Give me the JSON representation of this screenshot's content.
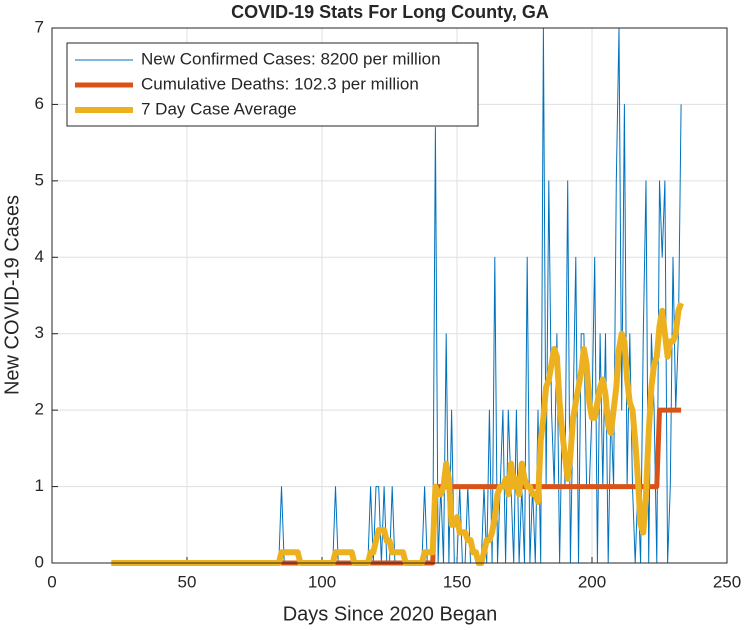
{
  "chart_data": {
    "type": "line",
    "title": "COVID-19 Stats For Long County, GA",
    "x_label": "Days Since 2020 Began",
    "y_label": "New COVID-19 Cases",
    "xlim": [
      0,
      250
    ],
    "ylim": [
      0,
      7
    ],
    "xticks": [
      0,
      50,
      100,
      150,
      200,
      250
    ],
    "yticks": [
      0,
      1,
      2,
      3,
      4,
      5,
      6,
      7
    ],
    "grid": true,
    "legend_position": "northwest",
    "x": [
      22,
      23,
      24,
      25,
      26,
      27,
      28,
      29,
      30,
      31,
      32,
      33,
      34,
      35,
      36,
      37,
      38,
      39,
      40,
      41,
      42,
      43,
      44,
      45,
      46,
      47,
      48,
      49,
      50,
      51,
      52,
      53,
      54,
      55,
      56,
      57,
      58,
      59,
      60,
      61,
      62,
      63,
      64,
      65,
      66,
      67,
      68,
      69,
      70,
      71,
      72,
      73,
      74,
      75,
      76,
      77,
      78,
      79,
      80,
      81,
      82,
      83,
      84,
      85,
      86,
      87,
      88,
      89,
      90,
      91,
      92,
      93,
      94,
      95,
      96,
      97,
      98,
      99,
      100,
      101,
      102,
      103,
      104,
      105,
      106,
      107,
      108,
      109,
      110,
      111,
      112,
      113,
      114,
      115,
      116,
      117,
      118,
      119,
      120,
      121,
      122,
      123,
      124,
      125,
      126,
      127,
      128,
      129,
      130,
      131,
      132,
      133,
      134,
      135,
      136,
      137,
      138,
      139,
      140,
      141,
      142,
      143,
      144,
      145,
      146,
      147,
      148,
      149,
      150,
      151,
      152,
      153,
      154,
      155,
      156,
      157,
      158,
      159,
      160,
      161,
      162,
      163,
      164,
      165,
      166,
      167,
      168,
      169,
      170,
      171,
      172,
      173,
      174,
      175,
      176,
      177,
      178,
      179,
      180,
      181,
      182,
      183,
      184,
      185,
      186,
      187,
      188,
      189,
      190,
      191,
      192,
      193,
      194,
      195,
      196,
      197,
      198,
      199,
      200,
      201,
      202,
      203,
      204,
      205,
      206,
      207,
      208,
      209,
      210,
      211,
      212,
      213,
      214,
      215,
      216,
      217,
      218,
      219,
      220,
      221,
      222,
      223,
      224,
      225,
      226,
      227,
      228,
      229,
      230,
      231,
      232,
      233
    ],
    "series": [
      {
        "name": "New Confirmed Cases: 8200 per million",
        "color": "#0072BD",
        "width": 1,
        "values": [
          0,
          0,
          0,
          0,
          0,
          0,
          0,
          0,
          0,
          0,
          0,
          0,
          0,
          0,
          0,
          0,
          0,
          0,
          0,
          0,
          0,
          0,
          0,
          0,
          0,
          0,
          0,
          0,
          0,
          0,
          0,
          0,
          0,
          0,
          0,
          0,
          0,
          0,
          0,
          0,
          0,
          0,
          0,
          0,
          0,
          0,
          0,
          0,
          0,
          0,
          0,
          0,
          0,
          0,
          0,
          0,
          0,
          0,
          0,
          0,
          0,
          0,
          0,
          1,
          0,
          0,
          0,
          0,
          0,
          0,
          0,
          0,
          0,
          0,
          0,
          0,
          0,
          0,
          0,
          0,
          0,
          0,
          0,
          1,
          0,
          0,
          0,
          0,
          0,
          0,
          0,
          0,
          0,
          0,
          0,
          0,
          1,
          0,
          1,
          1,
          0,
          1,
          0,
          0,
          1,
          0,
          0,
          0,
          0,
          0,
          0,
          0,
          0,
          0,
          0,
          0,
          1,
          0,
          0,
          0,
          5.7,
          0,
          1,
          0,
          3,
          0,
          2,
          0,
          0,
          1,
          0,
          0,
          1,
          0,
          0,
          0,
          0,
          0,
          1,
          0,
          2,
          0,
          4,
          0,
          1,
          2,
          0,
          2,
          1,
          0,
          2,
          0,
          1,
          0,
          4,
          0,
          1,
          0,
          2,
          0,
          7,
          1,
          5,
          2,
          1,
          3,
          0,
          2,
          1,
          5,
          0,
          2,
          4,
          0,
          3,
          3,
          1,
          1,
          2,
          4,
          0,
          3,
          1,
          3,
          0,
          2,
          1,
          5,
          7,
          2,
          6,
          1,
          3,
          1,
          0,
          1,
          0,
          3,
          5,
          0,
          3,
          2,
          0,
          5,
          4,
          5,
          0,
          1,
          4,
          2,
          3,
          6
        ]
      },
      {
        "name": "Cumulative Deaths: 102.3 per million",
        "color": "#D95319",
        "width": 5,
        "values": [
          0,
          0,
          0,
          0,
          0,
          0,
          0,
          0,
          0,
          0,
          0,
          0,
          0,
          0,
          0,
          0,
          0,
          0,
          0,
          0,
          0,
          0,
          0,
          0,
          0,
          0,
          0,
          0,
          0,
          0,
          0,
          0,
          0,
          0,
          0,
          0,
          0,
          0,
          0,
          0,
          0,
          0,
          0,
          0,
          0,
          0,
          0,
          0,
          0,
          0,
          0,
          0,
          0,
          0,
          0,
          0,
          0,
          0,
          0,
          0,
          0,
          0,
          0,
          0,
          0,
          0,
          0,
          0,
          0,
          0,
          0,
          0,
          0,
          0,
          0,
          0,
          0,
          0,
          0,
          0,
          0,
          0,
          0,
          0,
          0,
          0,
          0,
          0,
          0,
          0,
          0,
          0,
          0,
          0,
          0,
          0,
          0,
          0,
          0,
          0,
          0,
          0,
          0,
          0,
          0,
          0,
          0,
          0,
          0,
          0,
          0,
          0,
          0,
          0,
          0,
          0,
          0,
          0,
          0,
          0,
          1,
          1,
          1,
          1,
          1,
          1,
          1,
          1,
          1,
          1,
          1,
          1,
          1,
          1,
          1,
          1,
          1,
          1,
          1,
          1,
          1,
          1,
          1,
          1,
          1,
          1,
          1,
          1,
          1,
          1,
          1,
          1,
          1,
          1,
          1,
          1,
          1,
          1,
          1,
          1,
          1,
          1,
          1,
          1,
          1,
          1,
          1,
          1,
          1,
          1,
          1,
          1,
          1,
          1,
          1,
          1,
          1,
          1,
          1,
          1,
          1,
          1,
          1,
          1,
          1,
          1,
          1,
          1,
          1,
          1,
          1,
          1,
          1,
          1,
          1,
          1,
          1,
          1,
          1,
          1,
          1,
          1,
          1,
          2,
          2,
          2,
          2,
          2,
          2,
          2,
          2,
          2
        ]
      },
      {
        "name": "7 Day Case Average",
        "color": "#EDB120",
        "width": 6,
        "values": [
          0,
          0,
          0,
          0,
          0,
          0,
          0,
          0,
          0,
          0,
          0,
          0,
          0,
          0,
          0,
          0,
          0,
          0,
          0,
          0,
          0,
          0,
          0,
          0,
          0,
          0,
          0,
          0,
          0,
          0,
          0,
          0,
          0,
          0,
          0,
          0,
          0,
          0,
          0,
          0,
          0,
          0,
          0,
          0,
          0,
          0,
          0,
          0,
          0,
          0,
          0,
          0,
          0,
          0,
          0,
          0,
          0,
          0,
          0,
          0,
          0,
          0,
          0,
          0.14,
          0.14,
          0.14,
          0.14,
          0.14,
          0.14,
          0.14,
          0,
          0,
          0,
          0,
          0,
          0,
          0,
          0,
          0,
          0,
          0,
          0,
          0,
          0.14,
          0.14,
          0.14,
          0.14,
          0.14,
          0.14,
          0.14,
          0,
          0,
          0,
          0,
          0,
          0,
          0.14,
          0.14,
          0.29,
          0.43,
          0.43,
          0.43,
          0.29,
          0.29,
          0.14,
          0.14,
          0.14,
          0.14,
          0.14,
          0,
          0,
          0,
          0,
          0,
          0,
          0,
          0.14,
          0.14,
          0.14,
          0.14,
          1.0,
          0.9,
          0.9,
          1.0,
          1.3,
          1.1,
          0.5,
          0.5,
          0.6,
          0.4,
          0.4,
          0.4,
          0.3,
          0.3,
          0.14,
          0.14,
          0,
          0,
          0.14,
          0.3,
          0.3,
          0.4,
          0.6,
          0.9,
          1.0,
          1.0,
          1.1,
          0.9,
          1.3,
          1.0,
          1.1,
          0.9,
          1.3,
          1.1,
          1.0,
          1.0,
          0.9,
          0.9,
          0.8,
          1.6,
          1.9,
          2.3,
          2.4,
          2.6,
          2.8,
          2.7,
          2.1,
          1.7,
          1.4,
          1.1,
          1.4,
          1.9,
          2.1,
          2.3,
          2.5,
          2.8,
          2.6,
          2.1,
          1.9,
          1.9,
          2.1,
          2.3,
          2.4,
          2.2,
          1.8,
          1.7,
          2.0,
          2.3,
          2.8,
          3.0,
          2.9,
          2.4,
          2.1,
          2.0,
          1.6,
          1.1,
          0.5,
          0.4,
          0.9,
          1.7,
          2.3,
          2.6,
          2.7,
          3.1,
          3.3,
          3.0,
          2.7,
          2.9,
          2.9,
          3.0,
          3.3,
          3.4
        ]
      }
    ]
  }
}
